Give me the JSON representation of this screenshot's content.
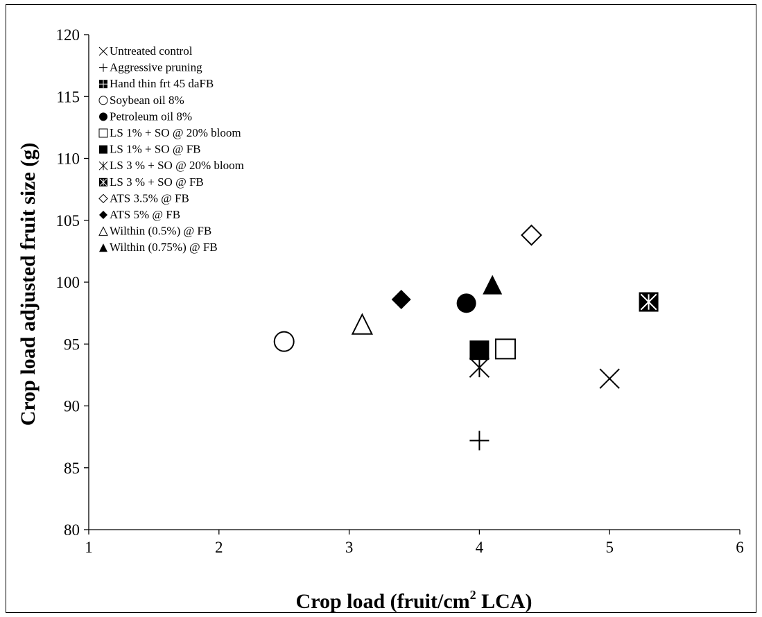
{
  "chart_data": {
    "type": "scatter",
    "title": "",
    "xlabel": "Crop load (fruit/cm",
    "xlabel_sup": "2",
    "xlabel_suffix": " LCA)",
    "ylabel": "Crop load adjusted fruit size (g)",
    "xlim": [
      1,
      6
    ],
    "ylim": [
      80,
      120
    ],
    "x_ticks": [
      1,
      2,
      3,
      4,
      5,
      6
    ],
    "y_ticks": [
      80,
      85,
      90,
      95,
      100,
      105,
      110,
      115,
      120
    ],
    "grid": false,
    "legend_position": "top-left",
    "series": [
      {
        "name": "Untreated control",
        "marker": "x",
        "x": 5.0,
        "y": 92.2
      },
      {
        "name": "Aggressive pruning",
        "marker": "plus",
        "x": 4.0,
        "y": 87.2
      },
      {
        "name": "Hand thin frt 45 daFB",
        "marker": "square-plus",
        "x": null,
        "y": null
      },
      {
        "name": "Soybean oil 8%",
        "marker": "circle-open",
        "x": 2.5,
        "y": 95.2
      },
      {
        "name": "Petroleum oil 8%",
        "marker": "circle-filled",
        "x": 3.9,
        "y": 98.3
      },
      {
        "name": "LS 1% + SO @ 20% bloom",
        "marker": "square-open",
        "x": 4.2,
        "y": 94.6
      },
      {
        "name": "LS 1% + SO @ FB",
        "marker": "square-filled",
        "x": 4.0,
        "y": 94.5
      },
      {
        "name": "LS 3 % + SO @ 20% bloom",
        "marker": "asterisk",
        "x": 4.0,
        "y": 93.1
      },
      {
        "name": "LS 3 % + SO @ FB",
        "marker": "square-x",
        "x": 5.3,
        "y": 98.4
      },
      {
        "name": "ATS 3.5% @ FB",
        "marker": "diamond-open",
        "x": 4.4,
        "y": 103.8
      },
      {
        "name": "ATS 5% @ FB",
        "marker": "diamond-filled",
        "x": 3.4,
        "y": 98.6
      },
      {
        "name": "Wilthin (0.5%) @ FB",
        "marker": "triangle-open",
        "x": 3.1,
        "y": 96.6
      },
      {
        "name": "Wilthin (0.75%) @ FB",
        "marker": "triangle-filled",
        "x": 4.1,
        "y": 99.8
      }
    ]
  }
}
